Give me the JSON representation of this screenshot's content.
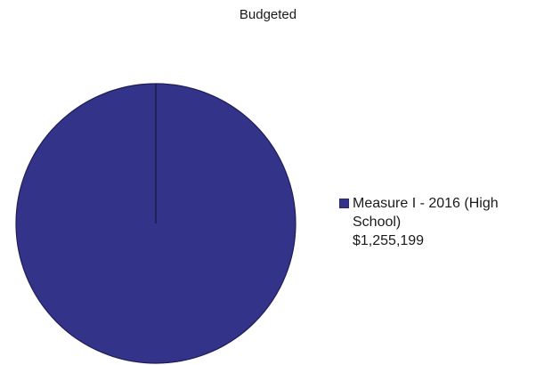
{
  "chart_data": {
    "type": "pie",
    "title": "Budgeted",
    "slices": [
      {
        "name": "Measure I - 2016 (High School)",
        "label_lines": [
          "Measure I - 2016 (High",
          "School)"
        ],
        "value": 1255199,
        "value_label": "$1,255,199",
        "share": 1.0,
        "color": "#33338a"
      }
    ],
    "legend_position": "right"
  }
}
